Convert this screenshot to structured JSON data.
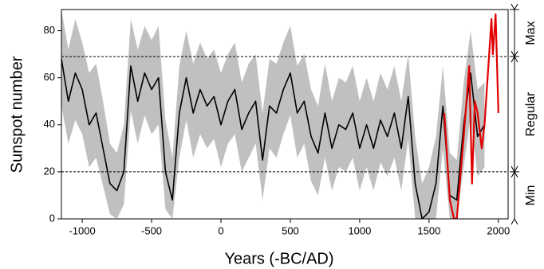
{
  "chart_data": {
    "type": "line",
    "xlabel": "Years (-BC/AD)",
    "ylabel": "Sunspot number",
    "xlim": [
      -1150,
      2070
    ],
    "ylim": [
      0,
      89
    ],
    "xticks": [
      -1000,
      -500,
      0,
      500,
      1000,
      1500,
      2000
    ],
    "yticks": [
      0,
      20,
      40,
      60,
      80
    ],
    "thresholds": [
      20,
      69
    ],
    "zones": [
      {
        "label": "Min",
        "range": [
          0,
          20
        ]
      },
      {
        "label": "Regular",
        "range": [
          20,
          69
        ]
      },
      {
        "label": "Max",
        "range": [
          69,
          89
        ]
      }
    ],
    "band": {
      "color": "#c0c0c0",
      "x": [
        -1150,
        -1100,
        -1050,
        -1000,
        -950,
        -900,
        -850,
        -800,
        -750,
        -700,
        -650,
        -600,
        -550,
        -500,
        -450,
        -400,
        -350,
        -300,
        -250,
        -200,
        -150,
        -100,
        -50,
        0,
        50,
        100,
        150,
        200,
        250,
        300,
        350,
        400,
        450,
        500,
        550,
        600,
        650,
        700,
        750,
        800,
        850,
        900,
        950,
        1000,
        1050,
        1100,
        1150,
        1200,
        1250,
        1300,
        1350,
        1400,
        1450,
        1500,
        1550,
        1600,
        1650,
        1700,
        1750,
        1800,
        1850,
        1900
      ],
      "upper": [
        89,
        72,
        85,
        75,
        62,
        66,
        50,
        32,
        28,
        40,
        85,
        72,
        82,
        76,
        82,
        42,
        26,
        65,
        80,
        66,
        75,
        68,
        72,
        62,
        70,
        75,
        58,
        66,
        70,
        45,
        68,
        66,
        75,
        82,
        65,
        70,
        55,
        48,
        66,
        50,
        60,
        58,
        65,
        50,
        60,
        50,
        62,
        55,
        65,
        50,
        70,
        35,
        15,
        22,
        35,
        65,
        28,
        25,
        58,
        80,
        55,
        58
      ],
      "lower": [
        48,
        32,
        42,
        36,
        22,
        26,
        14,
        2,
        0,
        6,
        46,
        32,
        44,
        36,
        40,
        4,
        0,
        26,
        42,
        26,
        36,
        30,
        34,
        22,
        32,
        36,
        20,
        26,
        32,
        8,
        30,
        26,
        36,
        44,
        26,
        32,
        16,
        10,
        26,
        12,
        22,
        20,
        26,
        12,
        22,
        12,
        24,
        18,
        26,
        12,
        34,
        0,
        0,
        0,
        0,
        30,
        0,
        0,
        22,
        44,
        18,
        22
      ]
    },
    "x": [
      -1150,
      -1100,
      -1050,
      -1000,
      -950,
      -900,
      -850,
      -800,
      -750,
      -700,
      -650,
      -600,
      -550,
      -500,
      -450,
      -400,
      -350,
      -300,
      -250,
      -200,
      -150,
      -100,
      -50,
      0,
      50,
      100,
      150,
      200,
      250,
      300,
      350,
      400,
      450,
      500,
      550,
      600,
      650,
      700,
      750,
      800,
      850,
      900,
      950,
      1000,
      1050,
      1100,
      1150,
      1200,
      1250,
      1300,
      1350,
      1400,
      1450,
      1500,
      1550,
      1600,
      1650,
      1700,
      1750,
      1800,
      1850,
      1900
    ],
    "series": [
      {
        "color": "#000000",
        "values": [
          68,
          50,
          62,
          55,
          40,
          45,
          30,
          15,
          12,
          20,
          65,
          50,
          62,
          55,
          60,
          20,
          8,
          45,
          60,
          45,
          55,
          48,
          52,
          40,
          50,
          55,
          38,
          45,
          50,
          25,
          48,
          45,
          55,
          62,
          45,
          50,
          35,
          28,
          45,
          30,
          40,
          38,
          45,
          30,
          40,
          30,
          42,
          35,
          45,
          30,
          52,
          15,
          0,
          3,
          15,
          48,
          10,
          8,
          40,
          62,
          35,
          40
        ]
      },
      {
        "color": "#e00000",
        "x": [
          1610,
          1650,
          1680,
          1700,
          1750,
          1790,
          1810,
          1830,
          1850,
          1880,
          1900,
          1950,
          1960,
          1980,
          2000
        ],
        "values": [
          45,
          8,
          0,
          0,
          35,
          65,
          15,
          50,
          45,
          30,
          40,
          85,
          70,
          87,
          45
        ]
      }
    ]
  }
}
